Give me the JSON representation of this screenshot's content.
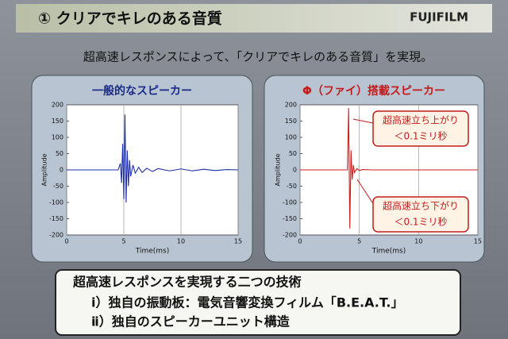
{
  "slide": {
    "title": "① クリアでキレのある音質",
    "logo": "FUJIFILM",
    "subtitle": "超高速レスポンスによって、「クリアでキレのある音質」を実現。",
    "box": [
      "超高速レスポンスを実現する二つの技術",
      "ⅰ）独自の振動板：電気音響変換フィルム「B.E.A.T.」",
      "ⅱ）独自のスピーカーユニット構造"
    ]
  },
  "chart_data": [
    {
      "type": "line",
      "title": "一般的なスピーカー",
      "x_label": "Time(ms)",
      "y_label": "Amplitude",
      "x": [
        0,
        4.5,
        4.7,
        4.8,
        4.9,
        5.0,
        5.1,
        5.2,
        5.3,
        5.4,
        5.5,
        5.6,
        5.8,
        6.0,
        6.3,
        6.6,
        7.0,
        7.5,
        8,
        9,
        10,
        11,
        12,
        13,
        14,
        15
      ],
      "values": [
        0,
        0,
        20,
        -40,
        80,
        -90,
        170,
        -100,
        60,
        -50,
        30,
        -20,
        15,
        -10,
        8,
        -8,
        5,
        -5,
        4,
        -3,
        3,
        -3,
        2,
        -2,
        1,
        0
      ],
      "color": "#1f2fa8",
      "xlim": [
        0,
        15
      ],
      "xticks": [
        0,
        5,
        10,
        15
      ],
      "ylim": [
        -200,
        200
      ],
      "yticks": [
        -200,
        -150,
        -100,
        -50,
        0,
        50,
        100,
        150,
        200
      ],
      "grid": "x"
    },
    {
      "type": "line",
      "title": "Φ（ファイ）搭載スピーカー",
      "x_label": "Time(ms)",
      "y_label": "Amplitude",
      "x": [
        0,
        4.0,
        4.1,
        4.2,
        4.3,
        4.4,
        4.5,
        4.6,
        4.8,
        5.0,
        5.3,
        6,
        8,
        10,
        15
      ],
      "values": [
        0,
        0,
        190,
        -180,
        60,
        -30,
        15,
        -8,
        4,
        -2,
        1,
        0,
        0,
        0,
        0
      ],
      "color": "#cc1f1f",
      "xlim": [
        0,
        15
      ],
      "xticks": [
        0,
        5,
        10,
        15
      ],
      "ylim": [
        -200,
        200
      ],
      "yticks": [
        -200,
        -150,
        -100,
        -50,
        0,
        50,
        100,
        150,
        200
      ],
      "grid": "x",
      "annotations": [
        [
          "超高速立ち上がり",
          "＜0.1ミリ秒"
        ],
        [
          "超高速立ち下がり",
          "＜0.1ミリ秒"
        ]
      ]
    }
  ]
}
